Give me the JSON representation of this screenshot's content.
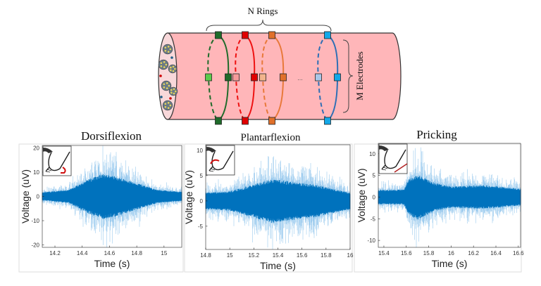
{
  "diagram": {
    "n_rings_label": "N  Rings",
    "m_electrodes_label": "M  Electrodes",
    "ellipsis": "...",
    "ring_colors": [
      "#1e6b2a",
      "#ee1111",
      "#e8793a",
      "#2f6fb5"
    ],
    "electrode_colors": [
      "#1e6b2a",
      "#e00000",
      "#e0702a",
      "#13a8e8"
    ],
    "nerve_color": "#ffb6b9"
  },
  "chart_data": [
    {
      "type": "line",
      "title": "Dorsiflexion",
      "xlabel": "Time (s)",
      "ylabel": "Voltage (uV)",
      "xlim": [
        14.107,
        15.13
      ],
      "ylim": [
        -21,
        21
      ],
      "xticks": [
        "14.2",
        "14.4",
        "14.6",
        "14.8",
        "15"
      ],
      "xtick_values": [
        14.2,
        14.4,
        14.6,
        14.8,
        15.0
      ],
      "yticks": [
        "20",
        "10",
        "0",
        "-10",
        "-20"
      ],
      "ytick_values": [
        20,
        10,
        0,
        -10,
        -20
      ],
      "series_color": "#0072bd",
      "inset_icon": "foot-dorsiflexion-icon",
      "envelope": {
        "t": [
          14.107,
          14.3,
          14.45,
          14.55,
          14.65,
          14.8,
          14.95,
          15.13
        ],
        "amplitude": [
          3,
          5,
          13,
          17,
          15,
          10,
          5,
          3.5
        ]
      }
    },
    {
      "type": "line",
      "title": "Plantarflexion",
      "xlabel": "Time (s)",
      "ylabel": "Voltage (uV)",
      "xlim": [
        14.8,
        16.0
      ],
      "ylim": [
        -9.6,
        11.1
      ],
      "xticks": [
        "14.8",
        "15",
        "15.2",
        "15.4",
        "15.6",
        "15.8",
        "16"
      ],
      "xtick_values": [
        14.8,
        15.0,
        15.2,
        15.4,
        15.6,
        15.8,
        16.0
      ],
      "yticks": [
        "10",
        "5",
        "0",
        "-5"
      ],
      "ytick_values": [
        10,
        5,
        0,
        -5
      ],
      "series_color": "#0072bd",
      "inset_icon": "foot-plantarflexion-icon",
      "envelope": {
        "t": [
          14.8,
          15.0,
          15.2,
          15.35,
          15.5,
          15.7,
          15.9,
          16.0
        ],
        "amplitude": [
          3,
          3.5,
          6,
          8,
          7,
          6,
          4,
          3
        ]
      }
    },
    {
      "type": "line",
      "title": "Pricking",
      "xlabel": "Time (s)",
      "ylabel": "Voltage (uV)",
      "xlim": [
        15.35,
        16.62
      ],
      "ylim": [
        -11.6,
        12.4
      ],
      "xticks": [
        "15.4",
        "15.6",
        "15.8",
        "16",
        "16.2",
        "16.4",
        "16.6"
      ],
      "xtick_values": [
        15.4,
        15.6,
        15.8,
        16.0,
        16.2,
        16.4,
        16.6
      ],
      "yticks": [
        "10",
        "5",
        "0",
        "-5",
        "-10"
      ],
      "ytick_values": [
        10,
        5,
        0,
        -5,
        -10
      ],
      "series_color": "#0072bd",
      "inset_icon": "foot-pricking-icon",
      "envelope": {
        "t": [
          15.35,
          15.58,
          15.62,
          15.7,
          15.85,
          16.0,
          16.3,
          16.62
        ],
        "amplitude": [
          3,
          3.2,
          7.5,
          9.5,
          6,
          4.5,
          5,
          3.5
        ]
      }
    }
  ]
}
